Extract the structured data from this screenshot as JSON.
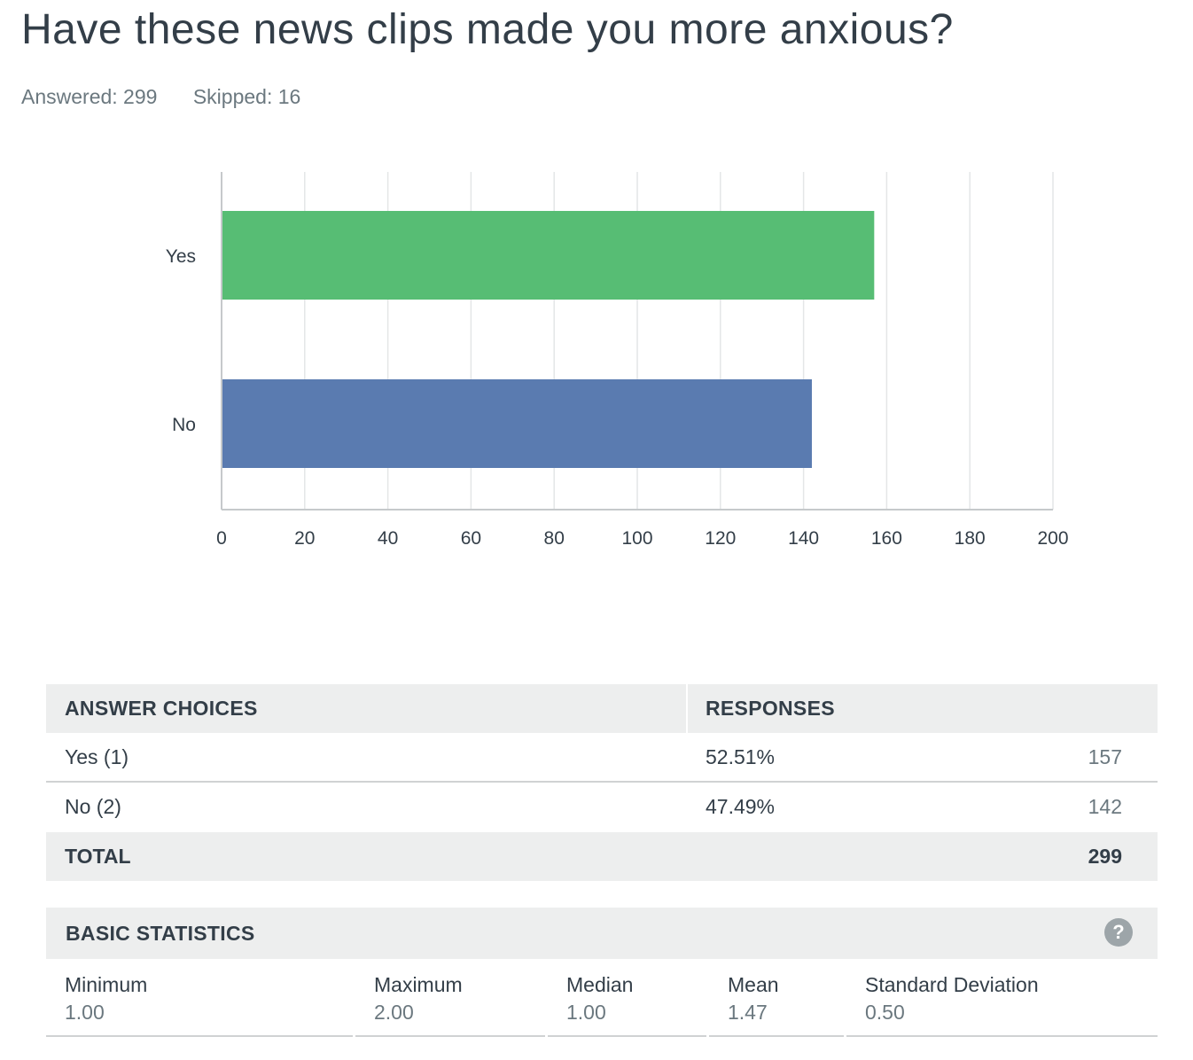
{
  "question": {
    "title": "Have these news clips made you more anxious?",
    "answered": "Answered: 299",
    "skipped": "Skipped: 16"
  },
  "chart_data": {
    "type": "bar",
    "orientation": "horizontal",
    "categories": [
      "Yes",
      "No"
    ],
    "values": [
      157,
      142
    ],
    "colors": [
      "#57bd74",
      "#5a7bb0"
    ],
    "xlim": [
      0,
      200
    ],
    "x_ticks": [
      0,
      20,
      40,
      60,
      80,
      100,
      120,
      140,
      160,
      180,
      200
    ],
    "grid": true,
    "title": "",
    "xlabel": "",
    "ylabel": ""
  },
  "table": {
    "header_choices": "ANSWER CHOICES",
    "header_responses": "RESPONSES",
    "rows": [
      {
        "choice": "Yes (1)",
        "percent": "52.51%",
        "count": "157"
      },
      {
        "choice": "No (2)",
        "percent": "47.49%",
        "count": "142"
      }
    ],
    "total_label": "TOTAL",
    "total_value": "299"
  },
  "stats": {
    "header": "BASIC STATISTICS",
    "help_icon": "question-mark-icon",
    "help_glyph": "?",
    "items": [
      {
        "name": "Minimum",
        "value": "1.00"
      },
      {
        "name": "Maximum",
        "value": "2.00"
      },
      {
        "name": "Median",
        "value": "1.00"
      },
      {
        "name": "Mean",
        "value": "1.47"
      },
      {
        "name": "Standard Deviation",
        "value": "0.50"
      }
    ]
  }
}
